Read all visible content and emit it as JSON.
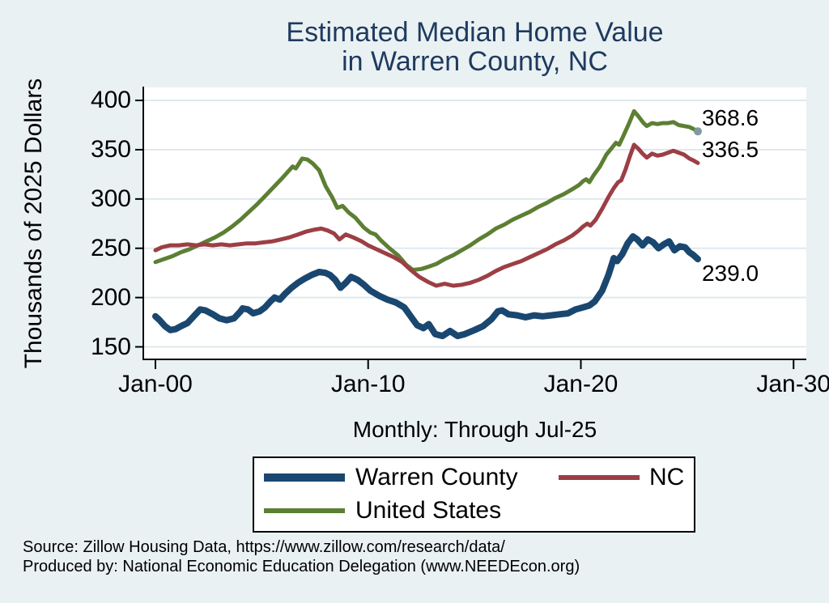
{
  "title": {
    "line1": "Estimated Median Home Value",
    "line2": "in Warren County, NC"
  },
  "y_axis": {
    "title": "Thousands of 2025 Dollars",
    "ticks": [
      {
        "label": "400",
        "value": 400
      },
      {
        "label": "350",
        "value": 350
      },
      {
        "label": "300",
        "value": 300
      },
      {
        "label": "250",
        "value": 250
      },
      {
        "label": "200",
        "value": 200
      },
      {
        "label": "150",
        "value": 150
      }
    ]
  },
  "x_axis": {
    "title": "Monthly: Through Jul-25",
    "ticks": [
      {
        "label": "Jan-00",
        "value": 2000
      },
      {
        "label": "Jan-10",
        "value": 2010
      },
      {
        "label": "Jan-20",
        "value": 2020
      },
      {
        "label": "Jan-30",
        "value": 2030
      }
    ]
  },
  "legend": {
    "entries": [
      {
        "label": "Warren County",
        "color": "#1a476f",
        "swatch_height": 10,
        "row": 0,
        "col": 0
      },
      {
        "label": "NC",
        "color": "#9c3f45",
        "swatch_height": 6,
        "row": 0,
        "col": 1
      },
      {
        "label": "United States",
        "color": "#5c7f33",
        "swatch_height": 6,
        "row": 1,
        "col": 0
      }
    ]
  },
  "source": {
    "line1": "Source: Zillow Housing Data, https://www.zillow.com/research/data/",
    "line2": "Produced by: National Economic Education Delegation (www.NEEDEcon.org)"
  },
  "colors": {
    "background": "#eaf1f3",
    "plot_background": "#ffffff",
    "gridline": "#dfe9ee",
    "axis": "#000000",
    "title": "#1e3a5f",
    "warren_county": "#1a476f",
    "nc": "#9c3f45",
    "united_states": "#5c7f33",
    "end_marker": "#80999e"
  },
  "chart_data": {
    "type": "line",
    "title": "Estimated Median Home Value in Warren County, NC",
    "xlabel": "Monthly: Through Jul-25",
    "ylabel": "Thousands of 2025 Dollars",
    "x_unit": "decimal year, monthly observations Jan-2000 through Jul-2025",
    "xlim": [
      1999.43,
      2030.6
    ],
    "ylim": [
      137.3,
      414.0
    ],
    "grid": "horizontal",
    "legend_position": "below",
    "end_values": {
      "Warren County": 239.0,
      "NC": 336.5,
      "United States": 368.6
    },
    "series": [
      {
        "name": "United States",
        "color": "#5c7f33",
        "width": 5,
        "end_label": "368.6",
        "end_label_side": "above",
        "end_marker": true,
        "points": [
          [
            2000.0,
            236
          ],
          [
            2000.4,
            239
          ],
          [
            2000.8,
            242
          ],
          [
            2001.2,
            246
          ],
          [
            2001.6,
            249
          ],
          [
            2002.0,
            253
          ],
          [
            2002.4,
            257
          ],
          [
            2002.8,
            261
          ],
          [
            2003.2,
            266
          ],
          [
            2003.6,
            272
          ],
          [
            2004.0,
            279
          ],
          [
            2004.4,
            287
          ],
          [
            2004.8,
            295
          ],
          [
            2005.2,
            304
          ],
          [
            2005.6,
            313
          ],
          [
            2006.0,
            322
          ],
          [
            2006.2,
            327
          ],
          [
            2006.45,
            333
          ],
          [
            2006.6,
            331
          ],
          [
            2006.9,
            341
          ],
          [
            2007.15,
            340
          ],
          [
            2007.4,
            336
          ],
          [
            2007.7,
            329
          ],
          [
            2008.0,
            313
          ],
          [
            2008.3,
            302
          ],
          [
            2008.55,
            291
          ],
          [
            2008.8,
            293
          ],
          [
            2009.1,
            286
          ],
          [
            2009.4,
            281
          ],
          [
            2009.8,
            271
          ],
          [
            2010.1,
            266
          ],
          [
            2010.35,
            264
          ],
          [
            2010.6,
            258
          ],
          [
            2011.0,
            250
          ],
          [
            2011.4,
            243
          ],
          [
            2011.8,
            233
          ],
          [
            2012.1,
            228
          ],
          [
            2012.5,
            229
          ],
          [
            2012.8,
            231
          ],
          [
            2013.2,
            234
          ],
          [
            2013.6,
            239
          ],
          [
            2014.0,
            243
          ],
          [
            2014.4,
            248
          ],
          [
            2014.8,
            253
          ],
          [
            2015.2,
            259
          ],
          [
            2015.6,
            264
          ],
          [
            2016.0,
            270
          ],
          [
            2016.4,
            274
          ],
          [
            2016.8,
            279
          ],
          [
            2017.2,
            283
          ],
          [
            2017.6,
            287
          ],
          [
            2018.0,
            292
          ],
          [
            2018.4,
            296
          ],
          [
            2018.8,
            301
          ],
          [
            2019.2,
            305
          ],
          [
            2019.6,
            310
          ],
          [
            2019.9,
            314
          ],
          [
            2020.1,
            318
          ],
          [
            2020.25,
            320
          ],
          [
            2020.4,
            317
          ],
          [
            2020.6,
            324
          ],
          [
            2020.9,
            333
          ],
          [
            2021.2,
            345
          ],
          [
            2021.5,
            353
          ],
          [
            2021.65,
            357
          ],
          [
            2021.8,
            355
          ],
          [
            2022.0,
            364
          ],
          [
            2022.25,
            376
          ],
          [
            2022.5,
            389
          ],
          [
            2022.7,
            384
          ],
          [
            2022.95,
            377
          ],
          [
            2023.1,
            374
          ],
          [
            2023.35,
            377
          ],
          [
            2023.6,
            376
          ],
          [
            2023.85,
            377
          ],
          [
            2024.1,
            377
          ],
          [
            2024.35,
            378
          ],
          [
            2024.6,
            375
          ],
          [
            2024.85,
            374
          ],
          [
            2025.1,
            373
          ],
          [
            2025.3,
            371
          ],
          [
            2025.5,
            368.6
          ]
        ]
      },
      {
        "name": "NC",
        "color": "#9c3f45",
        "width": 5,
        "end_label": "336.5",
        "end_label_side": "above",
        "end_marker": false,
        "points": [
          [
            2000.0,
            248
          ],
          [
            2000.3,
            251
          ],
          [
            2000.7,
            253
          ],
          [
            2001.1,
            253
          ],
          [
            2001.5,
            254
          ],
          [
            2001.9,
            253
          ],
          [
            2002.3,
            254
          ],
          [
            2002.7,
            253
          ],
          [
            2003.1,
            254
          ],
          [
            2003.5,
            253
          ],
          [
            2003.9,
            254
          ],
          [
            2004.3,
            255
          ],
          [
            2004.7,
            255
          ],
          [
            2005.1,
            256
          ],
          [
            2005.5,
            257
          ],
          [
            2005.9,
            259
          ],
          [
            2006.3,
            261
          ],
          [
            2006.7,
            264
          ],
          [
            2007.1,
            267
          ],
          [
            2007.5,
            269
          ],
          [
            2007.8,
            270
          ],
          [
            2008.1,
            268
          ],
          [
            2008.4,
            265
          ],
          [
            2008.65,
            259
          ],
          [
            2008.95,
            264
          ],
          [
            2009.3,
            261
          ],
          [
            2009.7,
            257
          ],
          [
            2010.0,
            253
          ],
          [
            2010.4,
            249
          ],
          [
            2010.8,
            245
          ],
          [
            2011.2,
            241
          ],
          [
            2011.6,
            236
          ],
          [
            2012.0,
            228
          ],
          [
            2012.4,
            221
          ],
          [
            2012.8,
            216
          ],
          [
            2013.2,
            212
          ],
          [
            2013.6,
            214
          ],
          [
            2014.0,
            212
          ],
          [
            2014.4,
            213
          ],
          [
            2014.8,
            215
          ],
          [
            2015.2,
            218
          ],
          [
            2015.6,
            222
          ],
          [
            2016.0,
            227
          ],
          [
            2016.4,
            231
          ],
          [
            2016.8,
            234
          ],
          [
            2017.2,
            237
          ],
          [
            2017.6,
            241
          ],
          [
            2018.0,
            245
          ],
          [
            2018.4,
            249
          ],
          [
            2018.8,
            254
          ],
          [
            2019.2,
            258
          ],
          [
            2019.6,
            263
          ],
          [
            2019.9,
            268
          ],
          [
            2020.1,
            272
          ],
          [
            2020.3,
            275
          ],
          [
            2020.45,
            273
          ],
          [
            2020.7,
            279
          ],
          [
            2021.0,
            290
          ],
          [
            2021.3,
            302
          ],
          [
            2021.55,
            311
          ],
          [
            2021.75,
            317
          ],
          [
            2021.9,
            319
          ],
          [
            2022.1,
            330
          ],
          [
            2022.3,
            343
          ],
          [
            2022.5,
            355
          ],
          [
            2022.7,
            351
          ],
          [
            2022.9,
            346
          ],
          [
            2023.1,
            342
          ],
          [
            2023.35,
            346
          ],
          [
            2023.6,
            344
          ],
          [
            2023.85,
            345
          ],
          [
            2024.1,
            347
          ],
          [
            2024.35,
            349
          ],
          [
            2024.6,
            347
          ],
          [
            2024.85,
            345
          ],
          [
            2025.1,
            341
          ],
          [
            2025.3,
            339
          ],
          [
            2025.5,
            336.5
          ]
        ]
      },
      {
        "name": "Warren County",
        "color": "#1a476f",
        "width": 8,
        "end_label": "239.0",
        "end_label_side": "below",
        "end_marker": false,
        "points": [
          [
            2000.0,
            181
          ],
          [
            2000.2,
            177
          ],
          [
            2000.45,
            171
          ],
          [
            2000.7,
            167
          ],
          [
            2000.95,
            168
          ],
          [
            2001.2,
            171
          ],
          [
            2001.5,
            174
          ],
          [
            2001.8,
            181
          ],
          [
            2002.1,
            188
          ],
          [
            2002.35,
            187
          ],
          [
            2002.7,
            183
          ],
          [
            2003.0,
            179
          ],
          [
            2003.35,
            177
          ],
          [
            2003.7,
            179
          ],
          [
            2004.0,
            186
          ],
          [
            2004.1,
            189
          ],
          [
            2004.35,
            188
          ],
          [
            2004.6,
            184
          ],
          [
            2004.9,
            186
          ],
          [
            2005.15,
            190
          ],
          [
            2005.4,
            196
          ],
          [
            2005.6,
            200
          ],
          [
            2005.85,
            198
          ],
          [
            2006.1,
            204
          ],
          [
            2006.4,
            210
          ],
          [
            2006.7,
            215
          ],
          [
            2007.0,
            219
          ],
          [
            2007.35,
            223
          ],
          [
            2007.7,
            226
          ],
          [
            2008.0,
            225
          ],
          [
            2008.2,
            223
          ],
          [
            2008.45,
            218
          ],
          [
            2008.7,
            210
          ],
          [
            2008.95,
            215
          ],
          [
            2009.2,
            221
          ],
          [
            2009.5,
            218
          ],
          [
            2009.8,
            213
          ],
          [
            2010.1,
            207
          ],
          [
            2010.5,
            202
          ],
          [
            2010.9,
            198
          ],
          [
            2011.3,
            195
          ],
          [
            2011.7,
            190
          ],
          [
            2012.0,
            181
          ],
          [
            2012.3,
            172
          ],
          [
            2012.6,
            169
          ],
          [
            2012.85,
            173
          ],
          [
            2013.15,
            163
          ],
          [
            2013.5,
            161
          ],
          [
            2013.85,
            166
          ],
          [
            2014.2,
            161
          ],
          [
            2014.55,
            163
          ],
          [
            2015.0,
            167
          ],
          [
            2015.4,
            171
          ],
          [
            2015.8,
            178
          ],
          [
            2016.1,
            186
          ],
          [
            2016.3,
            187
          ],
          [
            2016.6,
            183
          ],
          [
            2017.0,
            182
          ],
          [
            2017.4,
            180
          ],
          [
            2017.8,
            182
          ],
          [
            2018.2,
            181
          ],
          [
            2018.6,
            182
          ],
          [
            2019.0,
            183
          ],
          [
            2019.4,
            184
          ],
          [
            2019.75,
            188
          ],
          [
            2020.1,
            190
          ],
          [
            2020.4,
            192
          ],
          [
            2020.65,
            196
          ],
          [
            2021.0,
            207
          ],
          [
            2021.3,
            223
          ],
          [
            2021.55,
            240
          ],
          [
            2021.7,
            237
          ],
          [
            2021.95,
            244
          ],
          [
            2022.2,
            255
          ],
          [
            2022.45,
            262
          ],
          [
            2022.65,
            259
          ],
          [
            2022.9,
            253
          ],
          [
            2023.15,
            259
          ],
          [
            2023.4,
            256
          ],
          [
            2023.65,
            250
          ],
          [
            2023.9,
            254
          ],
          [
            2024.15,
            257
          ],
          [
            2024.4,
            248
          ],
          [
            2024.65,
            252
          ],
          [
            2024.9,
            251
          ],
          [
            2025.1,
            246
          ],
          [
            2025.3,
            243
          ],
          [
            2025.5,
            239
          ]
        ]
      }
    ]
  }
}
